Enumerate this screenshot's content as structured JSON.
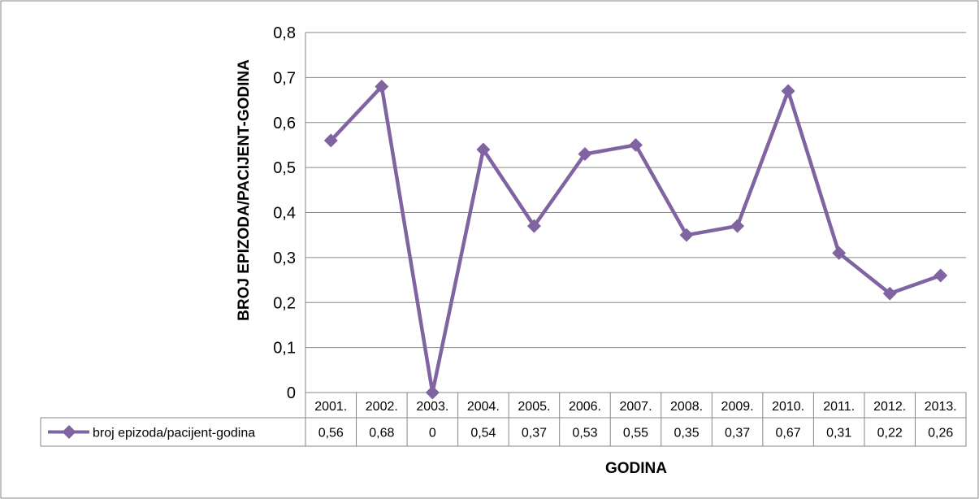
{
  "chart_data": {
    "type": "line",
    "xlabel": "GODINA",
    "ylabel": "BROJ EPIZODA/PACIJENT-GODINA",
    "ylim": [
      0,
      0.8
    ],
    "ytick_labels": [
      "0",
      "0,1",
      "0,2",
      "0,3",
      "0,4",
      "0,5",
      "0,6",
      "0,7",
      "0,8"
    ],
    "grid": true,
    "legend": "data-table",
    "categories": [
      "2001.",
      "2002.",
      "2003.",
      "2004.",
      "2005.",
      "2006.",
      "2007.",
      "2008.",
      "2009.",
      "2010.",
      "2011.",
      "2012.",
      "2013."
    ],
    "series": [
      {
        "name": "broj epizoda/pacijent-godina",
        "color": "#8064a2",
        "values": [
          0.56,
          0.68,
          0,
          0.54,
          0.37,
          0.53,
          0.55,
          0.35,
          0.37,
          0.67,
          0.31,
          0.22,
          0.26
        ],
        "value_labels": [
          "0,56",
          "0,68",
          "0",
          "0,54",
          "0,37",
          "0,53",
          "0,55",
          "0,35",
          "0,37",
          "0,67",
          "0,31",
          "0,22",
          "0,26"
        ]
      }
    ]
  }
}
